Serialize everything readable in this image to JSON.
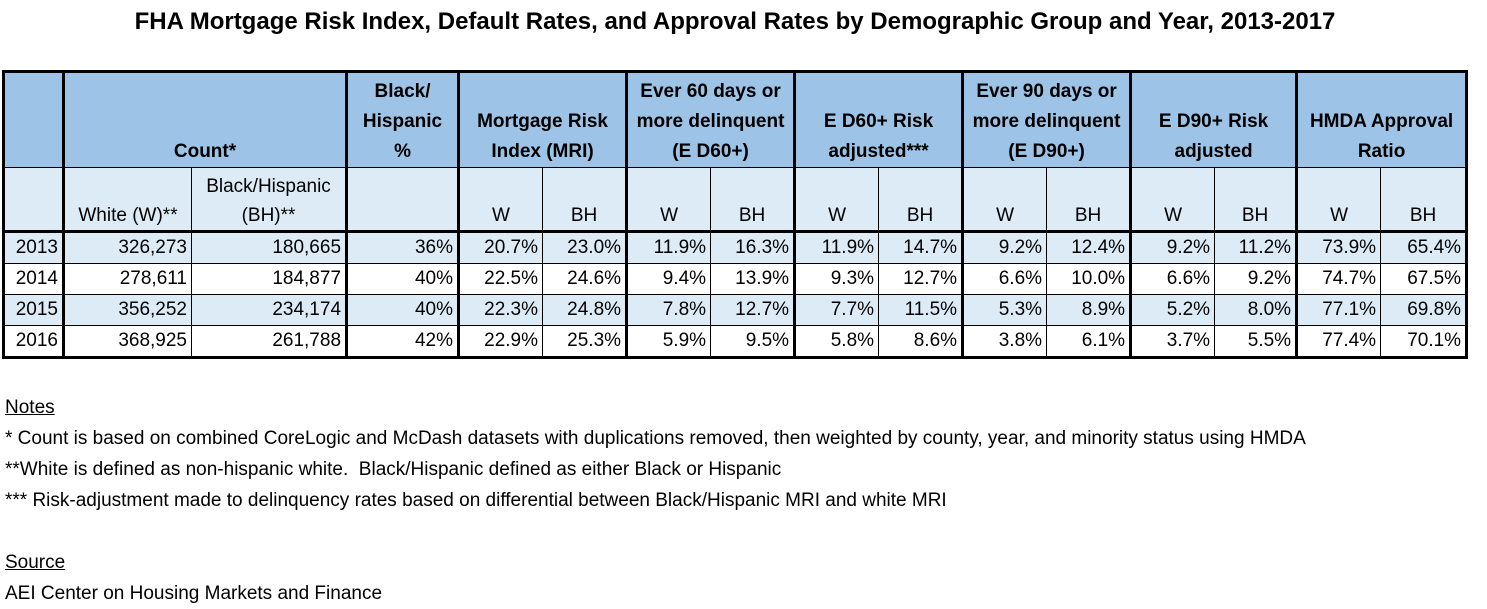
{
  "title": "FHA Mortgage Risk Index, Default Rates, and Approval Rates by Demographic Group and Year, 2013-2017",
  "table": {
    "group_headers": {
      "count": "Count*",
      "bh_pct": "Black/ Hispanic %",
      "mri": "Mortgage Risk Index (MRI)",
      "ed60": "Ever 60 days or more delinquent (E D60+)",
      "ed60_adj": "E D60+ Risk adjusted***",
      "ed90": "Ever 90 days or more delinquent (E D90+)",
      "ed90_adj": "E D90+ Risk adjusted",
      "hmda": "HMDA Approval Ratio"
    },
    "sub_headers": {
      "white": "White (W)**",
      "bh": "Black/Hispanic (BH)**",
      "w": "W",
      "b": "BH"
    },
    "rows": [
      {
        "year": "2013",
        "white": "326,273",
        "bh": "180,665",
        "bh_pct": "36%",
        "mri_w": "20.7%",
        "mri_bh": "23.0%",
        "ed60_w": "11.9%",
        "ed60_bh": "16.3%",
        "ed60a_w": "11.9%",
        "ed60a_bh": "14.7%",
        "ed90_w": "9.2%",
        "ed90_bh": "12.4%",
        "ed90a_w": "9.2%",
        "ed90a_bh": "11.2%",
        "hmda_w": "73.9%",
        "hmda_bh": "65.4%"
      },
      {
        "year": "2014",
        "white": "278,611",
        "bh": "184,877",
        "bh_pct": "40%",
        "mri_w": "22.5%",
        "mri_bh": "24.6%",
        "ed60_w": "9.4%",
        "ed60_bh": "13.9%",
        "ed60a_w": "9.3%",
        "ed60a_bh": "12.7%",
        "ed90_w": "6.6%",
        "ed90_bh": "10.0%",
        "ed90a_w": "6.6%",
        "ed90a_bh": "9.2%",
        "hmda_w": "74.7%",
        "hmda_bh": "67.5%"
      },
      {
        "year": "2015",
        "white": "356,252",
        "bh": "234,174",
        "bh_pct": "40%",
        "mri_w": "22.3%",
        "mri_bh": "24.8%",
        "ed60_w": "7.8%",
        "ed60_bh": "12.7%",
        "ed60a_w": "7.7%",
        "ed60a_bh": "11.5%",
        "ed90_w": "5.3%",
        "ed90_bh": "8.9%",
        "ed90a_w": "5.2%",
        "ed90a_bh": "8.0%",
        "hmda_w": "77.1%",
        "hmda_bh": "69.8%"
      },
      {
        "year": "2016",
        "white": "368,925",
        "bh": "261,788",
        "bh_pct": "42%",
        "mri_w": "22.9%",
        "mri_bh": "25.3%",
        "ed60_w": "5.9%",
        "ed60_bh": "9.5%",
        "ed60a_w": "5.8%",
        "ed60a_bh": "8.6%",
        "ed90_w": "3.8%",
        "ed90_bh": "6.1%",
        "ed90a_w": "3.7%",
        "ed90a_bh": "5.5%",
        "hmda_w": "77.4%",
        "hmda_bh": "70.1%"
      }
    ]
  },
  "notes": {
    "heading": "Notes",
    "items": [
      "* Count is based on combined CoreLogic and McDash datasets with duplications removed, then weighted by county, year, and minority status using HMDA",
      "**White is defined as non-hispanic white.  Black/Hispanic defined as either Black or Hispanic",
      "*** Risk-adjustment made to delinquency rates based on differential between Black/Hispanic MRI and white MRI"
    ],
    "source_heading": "Source",
    "source": "AEI Center on Housing Markets and Finance"
  }
}
